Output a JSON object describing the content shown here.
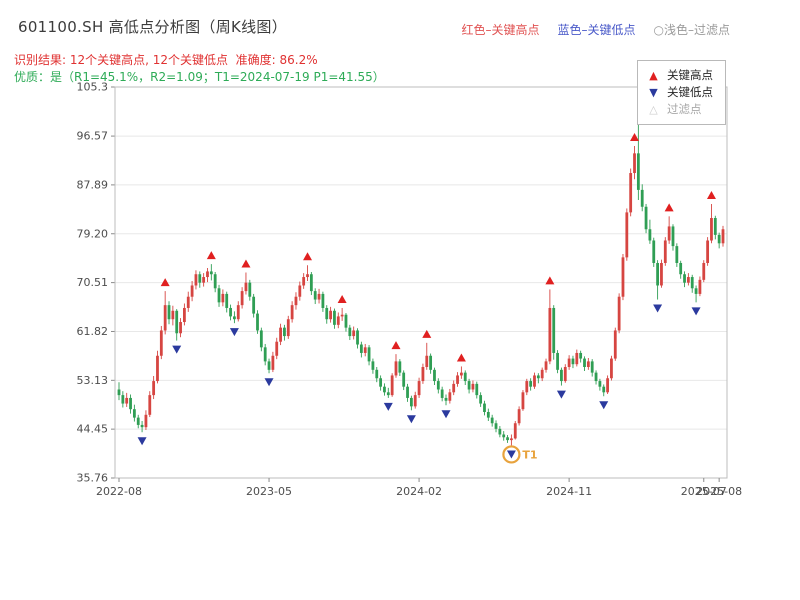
{
  "header": {
    "title": "601100.SH 高低点分析图（周K线图）",
    "subtitle_result": "识别结果: 12个关键高点, 12个关键低点  准确度: 86.2%",
    "subtitle_quality": "优质：是（R1=45.1%，R2=1.09；T1=2024-07-19 P1=41.55）",
    "subtitle_result_color": "#e03232",
    "subtitle_quality_color": "#2eab57",
    "legend_inline": [
      {
        "label": "红色–关键高点",
        "color": "#e05252"
      },
      {
        "label": "蓝色–关键低点",
        "color": "#4a5ac9"
      },
      {
        "label": "○浅色–过滤点",
        "color": "#9a9a9a"
      }
    ]
  },
  "legend_box": {
    "items": [
      {
        "symbol": "▲",
        "label": "关键高点",
        "color": "#e02020"
      },
      {
        "symbol": "▼",
        "label": "关键低点",
        "color": "#2b3a9e"
      },
      {
        "symbol": "△",
        "label": "过滤点",
        "color": "#cccccc"
      }
    ]
  },
  "chart_data": {
    "type": "candlestick",
    "title": "601100.SH 高低点分析图（周K线图）",
    "frequency": "weekly",
    "ylim": [
      35.76,
      105.3
    ],
    "y_ticks": [
      {
        "v": 35.76,
        "label": "35.76"
      },
      {
        "v": 44.45,
        "label": "44.45"
      },
      {
        "v": 53.13,
        "label": "53.13"
      },
      {
        "v": 61.82,
        "label": "61.82"
      },
      {
        "v": 70.51,
        "label": "70.51"
      },
      {
        "v": 79.2,
        "label": "79.20"
      },
      {
        "v": 87.89,
        "label": "87.89"
      },
      {
        "v": 96.57,
        "label": "96.57"
      },
      {
        "v": 105.3,
        "label": "105.3"
      }
    ],
    "x_ticks": [
      {
        "index": 0,
        "label": "2022-08"
      },
      {
        "index": 39,
        "label": "2023-05"
      },
      {
        "index": 78,
        "label": "2024-02"
      },
      {
        "index": 117,
        "label": "2024-11"
      },
      {
        "index": 152,
        "label": "2025-07"
      },
      {
        "index": 156,
        "label": "2025-08"
      }
    ],
    "up_color": "#d64541",
    "down_color": "#2f9e54",
    "grid_color": "#e8e8e8",
    "marker_high_color": "#e02020",
    "marker_low_color": "#2b3a9e",
    "candles": [
      [
        51.5,
        52.8,
        49.6,
        50.5
      ],
      [
        50.5,
        51.2,
        48.3,
        49.0
      ],
      [
        49.0,
        50.9,
        48.4,
        50.0
      ],
      [
        50.0,
        50.6,
        47.2,
        48.0
      ],
      [
        48.0,
        48.8,
        45.8,
        46.5
      ],
      [
        46.5,
        47.0,
        44.6,
        45.2
      ],
      [
        45.2,
        45.9,
        43.9,
        44.8
      ],
      [
        44.8,
        47.8,
        44.3,
        47.0
      ],
      [
        47.0,
        51.2,
        46.6,
        50.5
      ],
      [
        50.5,
        53.9,
        49.8,
        53.0
      ],
      [
        53.0,
        58.4,
        52.6,
        57.5
      ],
      [
        57.5,
        62.8,
        56.9,
        62.0
      ],
      [
        62.0,
        69.0,
        61.3,
        66.5
      ],
      [
        66.5,
        67.2,
        63.1,
        64.0
      ],
      [
        64.0,
        66.4,
        62.9,
        65.5
      ],
      [
        65.5,
        65.8,
        60.2,
        61.5
      ],
      [
        61.5,
        64.2,
        60.8,
        63.5
      ],
      [
        63.5,
        66.8,
        62.9,
        66.0
      ],
      [
        66.0,
        68.9,
        65.3,
        68.0
      ],
      [
        68.0,
        70.8,
        67.2,
        70.0
      ],
      [
        70.0,
        72.7,
        69.3,
        72.0
      ],
      [
        72.0,
        72.5,
        69.6,
        70.5
      ],
      [
        70.5,
        72.2,
        69.8,
        71.5
      ],
      [
        71.5,
        73.1,
        70.6,
        72.5
      ],
      [
        72.5,
        73.8,
        70.9,
        72.0
      ],
      [
        72.0,
        72.4,
        68.8,
        69.5
      ],
      [
        69.5,
        70.1,
        66.2,
        67.0
      ],
      [
        67.0,
        69.3,
        66.3,
        68.5
      ],
      [
        68.5,
        68.9,
        65.2,
        66.0
      ],
      [
        66.0,
        66.6,
        63.8,
        64.5
      ],
      [
        64.5,
        65.4,
        63.3,
        64.0
      ],
      [
        64.0,
        67.2,
        63.6,
        66.5
      ],
      [
        66.5,
        69.7,
        65.9,
        69.0
      ],
      [
        69.0,
        72.3,
        68.4,
        70.5
      ],
      [
        70.5,
        71.0,
        67.3,
        68.0
      ],
      [
        68.0,
        68.5,
        64.3,
        65.0
      ],
      [
        65.0,
        65.6,
        61.4,
        62.0
      ],
      [
        62.0,
        62.5,
        58.3,
        59.0
      ],
      [
        59.0,
        59.6,
        55.8,
        56.5
      ],
      [
        56.5,
        57.0,
        54.4,
        55.0
      ],
      [
        55.0,
        58.2,
        54.6,
        57.5
      ],
      [
        57.5,
        60.7,
        56.9,
        60.0
      ],
      [
        60.0,
        63.2,
        59.4,
        62.5
      ],
      [
        62.5,
        63.0,
        60.2,
        61.0
      ],
      [
        61.0,
        64.6,
        60.5,
        64.0
      ],
      [
        64.0,
        67.2,
        63.4,
        66.5
      ],
      [
        66.5,
        68.8,
        65.7,
        68.0
      ],
      [
        68.0,
        70.7,
        67.3,
        70.0
      ],
      [
        70.0,
        72.2,
        69.4,
        71.5
      ],
      [
        71.5,
        73.6,
        70.8,
        72.0
      ],
      [
        72.0,
        72.4,
        68.3,
        69.0
      ],
      [
        69.0,
        69.5,
        66.7,
        67.5
      ],
      [
        67.5,
        69.4,
        66.8,
        68.5
      ],
      [
        68.5,
        68.9,
        65.3,
        66.0
      ],
      [
        66.0,
        66.5,
        63.2,
        64.0
      ],
      [
        64.0,
        66.2,
        63.4,
        65.5
      ],
      [
        65.5,
        65.9,
        62.3,
        63.0
      ],
      [
        63.0,
        65.2,
        62.4,
        64.5
      ],
      [
        64.5,
        66.0,
        63.7,
        64.8
      ],
      [
        64.8,
        65.1,
        61.8,
        62.5
      ],
      [
        62.5,
        63.0,
        60.3,
        61.0
      ],
      [
        61.0,
        62.7,
        60.4,
        62.0
      ],
      [
        62.0,
        62.4,
        58.8,
        59.5
      ],
      [
        59.5,
        60.0,
        57.2,
        58.0
      ],
      [
        58.0,
        59.6,
        57.4,
        59.0
      ],
      [
        59.0,
        59.4,
        55.8,
        56.5
      ],
      [
        56.5,
        57.0,
        54.3,
        55.0
      ],
      [
        55.0,
        55.5,
        52.8,
        53.5
      ],
      [
        53.5,
        54.0,
        51.3,
        52.0
      ],
      [
        52.0,
        52.6,
        50.4,
        51.0
      ],
      [
        51.0,
        51.8,
        50.0,
        50.5
      ],
      [
        50.5,
        54.4,
        50.2,
        54.0
      ],
      [
        54.0,
        57.8,
        53.6,
        56.5
      ],
      [
        56.5,
        56.9,
        53.9,
        54.5
      ],
      [
        54.5,
        54.9,
        51.4,
        52.0
      ],
      [
        52.0,
        52.5,
        49.3,
        50.0
      ],
      [
        50.0,
        50.4,
        47.8,
        48.5
      ],
      [
        48.5,
        51.1,
        48.1,
        50.5
      ],
      [
        50.5,
        53.6,
        50.0,
        53.0
      ],
      [
        53.0,
        56.1,
        52.5,
        55.5
      ],
      [
        55.5,
        59.8,
        55.0,
        57.5
      ],
      [
        57.5,
        57.9,
        54.3,
        55.0
      ],
      [
        55.0,
        55.4,
        52.3,
        53.0
      ],
      [
        53.0,
        53.5,
        50.8,
        51.5
      ],
      [
        51.5,
        52.0,
        49.4,
        50.0
      ],
      [
        50.0,
        50.6,
        48.7,
        49.5
      ],
      [
        49.5,
        51.6,
        49.0,
        51.0
      ],
      [
        51.0,
        53.1,
        50.5,
        52.5
      ],
      [
        52.5,
        54.6,
        52.0,
        54.0
      ],
      [
        54.0,
        55.6,
        53.4,
        54.5
      ],
      [
        54.5,
        54.9,
        52.3,
        53.0
      ],
      [
        53.0,
        53.4,
        50.8,
        51.5
      ],
      [
        51.5,
        53.1,
        51.0,
        52.5
      ],
      [
        52.5,
        52.9,
        49.9,
        50.5
      ],
      [
        50.5,
        51.0,
        48.4,
        49.0
      ],
      [
        49.0,
        49.5,
        46.9,
        47.5
      ],
      [
        47.5,
        48.1,
        45.9,
        46.5
      ],
      [
        46.5,
        47.0,
        44.9,
        45.5
      ],
      [
        45.5,
        46.0,
        43.9,
        44.5
      ],
      [
        44.5,
        45.0,
        43.0,
        43.5
      ],
      [
        43.5,
        44.1,
        42.4,
        43.0
      ],
      [
        43.0,
        43.4,
        42.0,
        42.5
      ],
      [
        42.5,
        43.5,
        41.55,
        42.8
      ],
      [
        42.8,
        45.9,
        42.6,
        45.5
      ],
      [
        45.5,
        48.5,
        45.1,
        48.0
      ],
      [
        48.0,
        51.4,
        47.7,
        51.0
      ],
      [
        51.0,
        53.4,
        50.5,
        53.0
      ],
      [
        53.0,
        53.5,
        51.3,
        52.0
      ],
      [
        52.0,
        54.5,
        51.6,
        54.0
      ],
      [
        54.0,
        54.4,
        52.6,
        53.5
      ],
      [
        53.5,
        55.4,
        53.0,
        55.0
      ],
      [
        55.0,
        57.0,
        54.5,
        56.5
      ],
      [
        56.5,
        69.3,
        56.0,
        66.0
      ],
      [
        66.0,
        66.5,
        56.8,
        58.0
      ],
      [
        58.0,
        58.5,
        54.4,
        55.0
      ],
      [
        55.0,
        55.4,
        52.2,
        53.0
      ],
      [
        53.0,
        56.0,
        52.7,
        55.5
      ],
      [
        55.5,
        57.6,
        55.0,
        57.0
      ],
      [
        57.0,
        57.5,
        55.3,
        56.0
      ],
      [
        56.0,
        58.6,
        55.6,
        58.0
      ],
      [
        58.0,
        58.4,
        56.3,
        57.0
      ],
      [
        57.0,
        57.4,
        54.8,
        55.5
      ],
      [
        55.5,
        57.1,
        55.0,
        56.5
      ],
      [
        56.5,
        56.9,
        53.8,
        54.5
      ],
      [
        54.5,
        54.9,
        52.4,
        53.0
      ],
      [
        53.0,
        53.4,
        51.3,
        52.0
      ],
      [
        52.0,
        52.4,
        50.3,
        51.0
      ],
      [
        51.0,
        54.0,
        50.7,
        53.5
      ],
      [
        53.5,
        57.5,
        53.1,
        57.0
      ],
      [
        57.0,
        62.5,
        56.6,
        62.0
      ],
      [
        62.0,
        68.6,
        61.5,
        68.0
      ],
      [
        68.0,
        75.6,
        67.4,
        75.0
      ],
      [
        75.0,
        83.7,
        74.4,
        83.0
      ],
      [
        83.0,
        90.8,
        82.3,
        90.0
      ],
      [
        90.0,
        94.8,
        88.9,
        93.5
      ],
      [
        93.5,
        100.5,
        85.2,
        87.0
      ],
      [
        87.0,
        88.0,
        83.2,
        84.0
      ],
      [
        84.0,
        84.5,
        79.3,
        80.0
      ],
      [
        80.0,
        81.7,
        77.4,
        78.0
      ],
      [
        78.0,
        78.5,
        73.3,
        74.0
      ],
      [
        74.0,
        74.5,
        67.5,
        70.0
      ],
      [
        70.0,
        74.6,
        69.6,
        74.0
      ],
      [
        74.0,
        78.6,
        73.5,
        78.0
      ],
      [
        78.0,
        82.3,
        77.4,
        80.5
      ],
      [
        80.5,
        80.9,
        76.2,
        77.0
      ],
      [
        77.0,
        77.5,
        73.3,
        74.0
      ],
      [
        74.0,
        74.4,
        71.2,
        72.0
      ],
      [
        72.0,
        72.5,
        69.7,
        70.5
      ],
      [
        70.5,
        72.2,
        70.0,
        71.5
      ],
      [
        71.5,
        71.9,
        68.7,
        69.5
      ],
      [
        69.5,
        70.0,
        67.0,
        68.5
      ],
      [
        68.5,
        71.6,
        68.1,
        71.0
      ],
      [
        71.0,
        74.5,
        70.6,
        74.0
      ],
      [
        74.0,
        78.6,
        73.5,
        78.0
      ],
      [
        78.0,
        84.5,
        77.5,
        82.0
      ],
      [
        82.0,
        82.4,
        78.2,
        79.0
      ],
      [
        79.0,
        79.4,
        76.6,
        77.5
      ],
      [
        77.5,
        80.6,
        76.9,
        80.0
      ]
    ],
    "key_high_indices": [
      12,
      24,
      33,
      49,
      58,
      72,
      80,
      89,
      112,
      134,
      143,
      154
    ],
    "key_low_indices": [
      6,
      15,
      30,
      39,
      70,
      76,
      85,
      102,
      115,
      126,
      140,
      150
    ],
    "filtered_indices": [],
    "annotation": {
      "label": "T1",
      "index": 102,
      "price": 41.55,
      "color": "#e8a33d"
    }
  }
}
